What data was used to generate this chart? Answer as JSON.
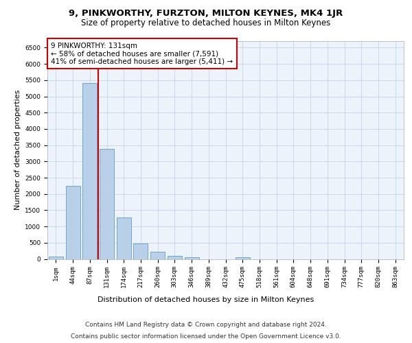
{
  "title": "9, PINKWORTHY, FURZTON, MILTON KEYNES, MK4 1JR",
  "subtitle": "Size of property relative to detached houses in Milton Keynes",
  "xlabel": "Distribution of detached houses by size in Milton Keynes",
  "ylabel": "Number of detached properties",
  "bar_labels": [
    "1sqm",
    "44sqm",
    "87sqm",
    "131sqm",
    "174sqm",
    "217sqm",
    "260sqm",
    "303sqm",
    "346sqm",
    "389sqm",
    "432sqm",
    "475sqm",
    "518sqm",
    "561sqm",
    "604sqm",
    "648sqm",
    "691sqm",
    "734sqm",
    "777sqm",
    "820sqm",
    "863sqm"
  ],
  "bar_values": [
    75,
    2250,
    5420,
    3380,
    1280,
    480,
    215,
    100,
    60,
    0,
    0,
    60,
    0,
    0,
    0,
    0,
    0,
    0,
    0,
    0,
    0
  ],
  "bar_color": "#b8d0e8",
  "bar_edgecolor": "#6699cc",
  "grid_color": "#c8d8ea",
  "background_color": "#edf3fa",
  "vline_index": 3,
  "vline_color": "#cc0000",
  "annotation_text": "9 PINKWORTHY: 131sqm\n← 58% of detached houses are smaller (7,591)\n41% of semi-detached houses are larger (5,411) →",
  "annotation_box_edgecolor": "#cc0000",
  "ylim": [
    0,
    6700
  ],
  "yticks": [
    0,
    500,
    1000,
    1500,
    2000,
    2500,
    3000,
    3500,
    4000,
    4500,
    5000,
    5500,
    6000,
    6500
  ],
  "footer_line1": "Contains HM Land Registry data © Crown copyright and database right 2024.",
  "footer_line2": "Contains public sector information licensed under the Open Government Licence v3.0.",
  "title_fontsize": 9.5,
  "subtitle_fontsize": 8.5,
  "xlabel_fontsize": 8,
  "ylabel_fontsize": 8,
  "tick_fontsize": 6.5,
  "annotation_fontsize": 7.5,
  "footer_fontsize": 6.5
}
